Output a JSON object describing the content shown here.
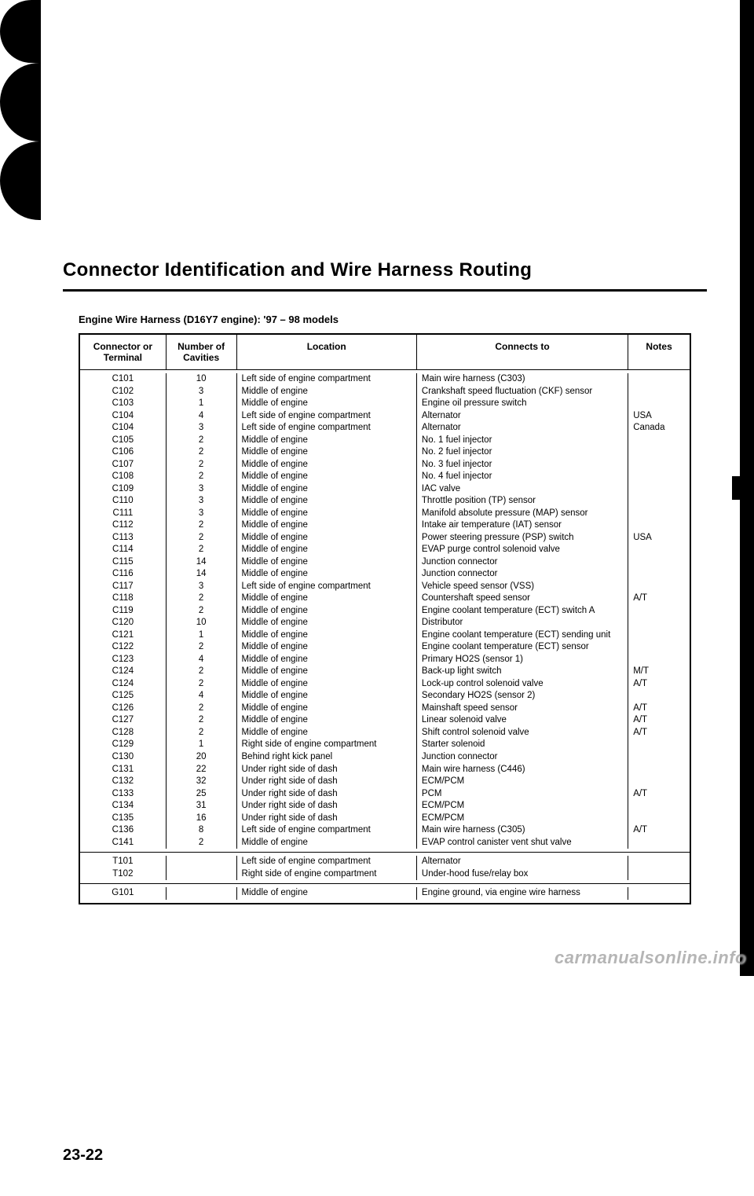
{
  "title": "Connector Identification and Wire Harness Routing",
  "subtitle": "Engine Wire Harness (D16Y7 engine): '97 – 98 models",
  "page_number": "23-22",
  "watermark": "carmanualsonline.info",
  "columns": {
    "connector": "Connector or Terminal",
    "cavities": "Number of Cavities",
    "location": "Location",
    "connects": "Connects to",
    "notes": "Notes"
  },
  "sections": [
    {
      "rows": [
        {
          "conn": "C101",
          "cav": "10",
          "loc": "Left side of engine compartment",
          "to": "Main wire harness (C303)",
          "note": ""
        },
        {
          "conn": "C102",
          "cav": "3",
          "loc": "Middle of engine",
          "to": "Crankshaft speed fluctuation (CKF) sensor",
          "note": ""
        },
        {
          "conn": "C103",
          "cav": "1",
          "loc": "Middle of engine",
          "to": "Engine oil pressure switch",
          "note": ""
        },
        {
          "conn": "C104",
          "cav": "4",
          "loc": "Left side of engine compartment",
          "to": "Alternator",
          "note": "USA"
        },
        {
          "conn": "C104",
          "cav": "3",
          "loc": "Left side of engine compartment",
          "to": "Alternator",
          "note": "Canada"
        },
        {
          "conn": "C105",
          "cav": "2",
          "loc": "Middle of engine",
          "to": "No. 1 fuel injector",
          "note": ""
        },
        {
          "conn": "C106",
          "cav": "2",
          "loc": "Middle of engine",
          "to": "No. 2 fuel injector",
          "note": ""
        },
        {
          "conn": "C107",
          "cav": "2",
          "loc": "Middle of engine",
          "to": "No. 3 fuel injector",
          "note": ""
        },
        {
          "conn": "C108",
          "cav": "2",
          "loc": "Middle of engine",
          "to": "No. 4 fuel injector",
          "note": ""
        },
        {
          "conn": "C109",
          "cav": "3",
          "loc": "Middle of engine",
          "to": "IAC valve",
          "note": ""
        },
        {
          "conn": "C110",
          "cav": "3",
          "loc": "Middle of engine",
          "to": "Throttle position (TP) sensor",
          "note": ""
        },
        {
          "conn": "C111",
          "cav": "3",
          "loc": "Middle of engine",
          "to": "Manifold absolute pressure (MAP) sensor",
          "note": ""
        },
        {
          "conn": "C112",
          "cav": "2",
          "loc": "Middle of engine",
          "to": "Intake air temperature (IAT) sensor",
          "note": ""
        },
        {
          "conn": "C113",
          "cav": "2",
          "loc": "Middle of engine",
          "to": "Power steering pressure (PSP) switch",
          "note": "USA"
        },
        {
          "conn": "C114",
          "cav": "2",
          "loc": "Middle of engine",
          "to": "EVAP purge control solenoid valve",
          "note": ""
        },
        {
          "conn": "C115",
          "cav": "14",
          "loc": "Middle of engine",
          "to": "Junction connector",
          "note": ""
        },
        {
          "conn": "C116",
          "cav": "14",
          "loc": "Middle of engine",
          "to": "Junction connector",
          "note": ""
        },
        {
          "conn": "C117",
          "cav": "3",
          "loc": "Left side of engine compartment",
          "to": "Vehicle speed sensor (VSS)",
          "note": ""
        },
        {
          "conn": "C118",
          "cav": "2",
          "loc": "Middle of engine",
          "to": "Countershaft speed sensor",
          "note": "A/T"
        },
        {
          "conn": "C119",
          "cav": "2",
          "loc": "Middle of engine",
          "to": "Engine coolant temperature (ECT) switch A",
          "note": ""
        },
        {
          "conn": "C120",
          "cav": "10",
          "loc": "Middle of engine",
          "to": "Distributor",
          "note": ""
        },
        {
          "conn": "C121",
          "cav": "1",
          "loc": "Middle of engine",
          "to": "Engine coolant temperature (ECT) sending unit",
          "note": ""
        },
        {
          "conn": "C122",
          "cav": "2",
          "loc": "Middle of engine",
          "to": "Engine coolant temperature (ECT) sensor",
          "note": ""
        },
        {
          "conn": "C123",
          "cav": "4",
          "loc": "Middle of engine",
          "to": "Primary HO2S (sensor 1)",
          "note": ""
        },
        {
          "conn": "C124",
          "cav": "2",
          "loc": "Middle of engine",
          "to": "Back-up light switch",
          "note": "M/T"
        },
        {
          "conn": "C124",
          "cav": "2",
          "loc": "Middle of engine",
          "to": "Lock-up control solenoid valve",
          "note": "A/T"
        },
        {
          "conn": "C125",
          "cav": "4",
          "loc": "Middle of engine",
          "to": "Secondary HO2S (sensor 2)",
          "note": ""
        },
        {
          "conn": "C126",
          "cav": "2",
          "loc": "Middle of engine",
          "to": "Mainshaft speed sensor",
          "note": "A/T"
        },
        {
          "conn": "C127",
          "cav": "2",
          "loc": "Middle of engine",
          "to": "Linear solenoid valve",
          "note": "A/T"
        },
        {
          "conn": "C128",
          "cav": "2",
          "loc": "Middle of engine",
          "to": "Shift control solenoid valve",
          "note": "A/T"
        },
        {
          "conn": "C129",
          "cav": "1",
          "loc": "Right side of engine compartment",
          "to": "Starter solenoid",
          "note": ""
        },
        {
          "conn": "C130",
          "cav": "20",
          "loc": "Behind right kick panel",
          "to": "Junction connector",
          "note": ""
        },
        {
          "conn": "C131",
          "cav": "22",
          "loc": "Under right side of dash",
          "to": "Main wire harness (C446)",
          "note": ""
        },
        {
          "conn": "C132",
          "cav": "32",
          "loc": "Under right side of dash",
          "to": "ECM/PCM",
          "note": ""
        },
        {
          "conn": "C133",
          "cav": "25",
          "loc": "Under right side of dash",
          "to": "PCM",
          "note": "A/T"
        },
        {
          "conn": "C134",
          "cav": "31",
          "loc": "Under right side of dash",
          "to": "ECM/PCM",
          "note": ""
        },
        {
          "conn": "C135",
          "cav": "16",
          "loc": "Under right side of dash",
          "to": "ECM/PCM",
          "note": ""
        },
        {
          "conn": "C136",
          "cav": "8",
          "loc": "Left side of engine compartment",
          "to": "Main wire harness (C305)",
          "note": "A/T"
        },
        {
          "conn": "C141",
          "cav": "2",
          "loc": "Middle of engine",
          "to": "EVAP control canister vent shut valve",
          "note": ""
        }
      ]
    },
    {
      "rows": [
        {
          "conn": "T101",
          "cav": "",
          "loc": "Left side of engine compartment",
          "to": "Alternator",
          "note": ""
        },
        {
          "conn": "T102",
          "cav": "",
          "loc": "Right side of engine compartment",
          "to": "Under-hood fuse/relay box",
          "note": ""
        }
      ]
    },
    {
      "rows": [
        {
          "conn": "G101",
          "cav": "",
          "loc": "Middle of engine",
          "to": "Engine ground, via engine wire harness",
          "note": ""
        }
      ]
    }
  ]
}
